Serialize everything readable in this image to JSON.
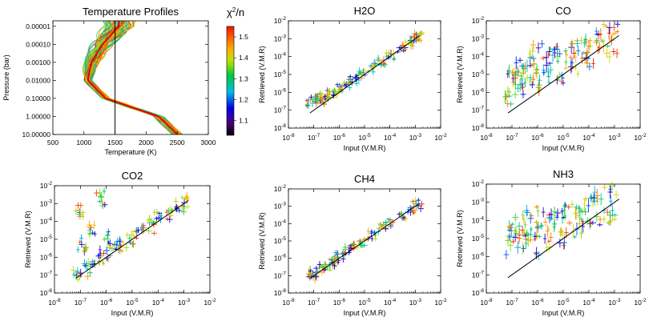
{
  "figure": {
    "colorbar": {
      "label_base": "χ",
      "label_sup": "2",
      "label_tail": "/n",
      "ticks": [
        "1.5",
        "1.4",
        "1.3",
        "1.2",
        "1.1"
      ],
      "range": [
        1.03,
        1.55
      ]
    }
  },
  "chart_data": [
    {
      "type": "line",
      "title": "Temperature Profiles",
      "xlabel": "Temperature (K)",
      "ylabel": "Pressure (bar)",
      "xlim": [
        500,
        3000
      ],
      "ylim": [
        10,
        5e-06
      ],
      "y_scale": "log",
      "x_tick_labels": [
        "500",
        "1000",
        "1500",
        "2000",
        "2500",
        "3000"
      ],
      "y_tick_labels": [
        "0.00001",
        "0.00010",
        "0.00100",
        "0.01000",
        "0.10000",
        "1.00000",
        "10.00000"
      ],
      "vertical_line_x": 1500,
      "series": [
        {
          "pressure": [
            1e-05,
            0.0001,
            0.001,
            0.01,
            0.1,
            1,
            10
          ],
          "temperature": [
            1560,
            1300,
            1120,
            1060,
            1350,
            2200,
            2500
          ]
        }
      ]
    },
    {
      "type": "scatter",
      "title": "H2O",
      "xlabel": "Input (V.M.R)",
      "ylabel": "Retrieved (V.M.R)",
      "x_scale": "log",
      "y_scale": "log",
      "xlim": [
        1e-08,
        0.01
      ],
      "ylim": [
        1e-08,
        0.01
      ],
      "x_tick_labels": [
        "10-8",
        "10-7",
        "10-6",
        "10-5",
        "10-4",
        "10-3",
        "10-2"
      ],
      "y_tick_labels": [
        "10-2",
        "10-3",
        "10-4",
        "10-5",
        "10-6",
        "10-7",
        "10-8"
      ],
      "one_to_one_line": [
        [
          7e-08,
          7e-08
        ],
        [
          0.0015,
          0.0015
        ]
      ],
      "points": [
        [
          8e-08,
          3e-07
        ],
        [
          1e-07,
          4e-07
        ],
        [
          1.5e-07,
          5e-07
        ],
        [
          2e-07,
          3.5e-07
        ],
        [
          3e-07,
          6e-07
        ],
        [
          5e-07,
          7e-07
        ],
        [
          8e-07,
          1e-06
        ],
        [
          1e-06,
          1.5e-06
        ],
        [
          2e-06,
          3e-06
        ],
        [
          4e-06,
          5e-06
        ],
        [
          8e-06,
          1e-05
        ],
        [
          2e-05,
          2.5e-05
        ],
        [
          5e-05,
          6e-05
        ],
        [
          0.0001,
          0.00012
        ],
        [
          0.0003,
          0.0003
        ],
        [
          0.0006,
          0.0007
        ],
        [
          0.001,
          0.0011
        ],
        [
          0.0013,
          0.0014
        ]
      ]
    },
    {
      "type": "scatter",
      "title": "CO",
      "xlabel": "Input (V.M.R)",
      "ylabel": "Retrieved (V.M.R)",
      "x_scale": "log",
      "y_scale": "log",
      "xlim": [
        1e-08,
        0.01
      ],
      "ylim": [
        1e-08,
        0.01
      ],
      "x_tick_labels": [
        "10-8",
        "10-7",
        "10-6",
        "10-5",
        "10-4",
        "10-3",
        "10-2"
      ],
      "y_tick_labels": [
        "10-2",
        "10-3",
        "10-4",
        "10-5",
        "10-6",
        "10-7",
        "10-8"
      ],
      "one_to_one_line": [
        [
          7e-08,
          7e-08
        ],
        [
          0.0015,
          0.0015
        ]
      ],
      "points": [
        [
          8e-08,
          2e-06
        ],
        [
          1e-07,
          5e-06
        ],
        [
          2e-07,
          1e-05
        ],
        [
          3e-07,
          3e-06
        ],
        [
          5e-07,
          2e-05
        ],
        [
          8e-07,
          1e-05
        ],
        [
          1e-06,
          5e-05
        ],
        [
          2e-06,
          2e-05
        ],
        [
          4e-06,
          6e-05
        ],
        [
          8e-06,
          3e-05
        ],
        [
          1.5e-05,
          0.0001
        ],
        [
          3e-05,
          8e-05
        ],
        [
          6e-05,
          0.00015
        ],
        [
          0.0001,
          0.0002
        ],
        [
          0.0002,
          0.0003
        ],
        [
          0.0005,
          0.0006
        ],
        [
          0.001,
          0.001
        ]
      ]
    },
    {
      "type": "scatter",
      "title": "CO2",
      "xlabel": "Input (V.M.R)",
      "ylabel": "Retrieved (V.M.R)",
      "x_scale": "log",
      "y_scale": "log",
      "xlim": [
        1e-08,
        0.01
      ],
      "ylim": [
        1e-08,
        0.01
      ],
      "x_tick_labels": [
        "10-8",
        "10-7",
        "10-6",
        "10-5",
        "10-4",
        "10-3",
        "10-2"
      ],
      "y_tick_labels": [
        "10-2",
        "10-3",
        "10-4",
        "10-5",
        "10-6",
        "10-7",
        "10-8"
      ],
      "one_to_one_line": [
        [
          7e-08,
          7e-08
        ],
        [
          0.0015,
          0.0015
        ]
      ],
      "points": [
        [
          8e-08,
          1.5e-07
        ],
        [
          1e-07,
          0.0003
        ],
        [
          1.2e-07,
          5e-06
        ],
        [
          2e-07,
          2e-07
        ],
        [
          3e-07,
          5e-05
        ],
        [
          4e-07,
          1e-06
        ],
        [
          6e-07,
          0.002
        ],
        [
          8e-07,
          1e-06
        ],
        [
          1e-06,
          1e-05
        ],
        [
          2e-06,
          3e-06
        ],
        [
          4e-06,
          6e-06
        ],
        [
          8e-06,
          1e-05
        ],
        [
          2e-05,
          2.5e-05
        ],
        [
          5e-05,
          6e-05
        ],
        [
          0.0001,
          0.00012
        ],
        [
          0.0003,
          0.00035
        ],
        [
          0.0007,
          0.0008
        ],
        [
          0.0012,
          0.0013
        ]
      ]
    },
    {
      "type": "scatter",
      "title": "CH4",
      "xlabel": "Input (V.M.R)",
      "ylabel": "Retrieved (V.M.R)",
      "x_scale": "log",
      "y_scale": "log",
      "xlim": [
        1e-08,
        0.01
      ],
      "ylim": [
        1e-08,
        0.01
      ],
      "x_tick_labels": [
        "10-8",
        "10-7",
        "10-6",
        "10-5",
        "10-4",
        "10-3",
        "10-2"
      ],
      "y_tick_labels": [
        "10-2",
        "10-3",
        "10-4",
        "10-5",
        "10-6",
        "10-7",
        "10-8"
      ],
      "one_to_one_line": [
        [
          7e-08,
          7e-08
        ],
        [
          0.0015,
          0.0015
        ]
      ],
      "points": [
        [
          8e-08,
          1e-07
        ],
        [
          1e-07,
          1.5e-07
        ],
        [
          2e-07,
          2.5e-07
        ],
        [
          3e-07,
          3e-07
        ],
        [
          5e-07,
          6e-07
        ],
        [
          8e-07,
          9e-07
        ],
        [
          1e-06,
          1.2e-06
        ],
        [
          2e-06,
          2.5e-06
        ],
        [
          4e-06,
          5e-06
        ],
        [
          8e-06,
          9e-06
        ],
        [
          2e-05,
          2.2e-05
        ],
        [
          5e-05,
          5.5e-05
        ],
        [
          0.0001,
          0.00011
        ],
        [
          0.0003,
          0.00032
        ],
        [
          0.0007,
          0.00075
        ],
        [
          0.0012,
          0.0013
        ]
      ]
    },
    {
      "type": "scatter",
      "title": "NH3",
      "xlabel": "Input (V.M.R)",
      "ylabel": "Retrieved (V.M.R)",
      "x_scale": "log",
      "y_scale": "log",
      "xlim": [
        1e-08,
        0.01
      ],
      "ylim": [
        1e-08,
        0.01
      ],
      "x_tick_labels": [
        "10-8",
        "10-7",
        "10-6",
        "10-5",
        "10-4",
        "10-3",
        "10-2"
      ],
      "y_tick_labels": [
        "10-2",
        "10-3",
        "10-4",
        "10-5",
        "10-6",
        "10-7",
        "10-8"
      ],
      "one_to_one_line": [
        [
          7e-08,
          7e-08
        ],
        [
          0.0015,
          0.0015
        ]
      ],
      "points": [
        [
          8e-08,
          1e-05
        ],
        [
          1e-07,
          3e-05
        ],
        [
          2e-07,
          5e-06
        ],
        [
          3e-07,
          2e-05
        ],
        [
          5e-07,
          4e-05
        ],
        [
          8e-07,
          1e-05
        ],
        [
          1e-06,
          6e-05
        ],
        [
          2e-06,
          3e-05
        ],
        [
          4e-06,
          8e-05
        ],
        [
          8e-06,
          4e-05
        ],
        [
          1.5e-05,
          0.0001
        ],
        [
          3e-05,
          0.00012
        ],
        [
          6e-05,
          0.0002
        ],
        [
          0.0001,
          0.00025
        ],
        [
          0.0002,
          0.0004
        ],
        [
          0.0005,
          0.0007
        ],
        [
          0.001,
          0.0012
        ]
      ]
    }
  ]
}
